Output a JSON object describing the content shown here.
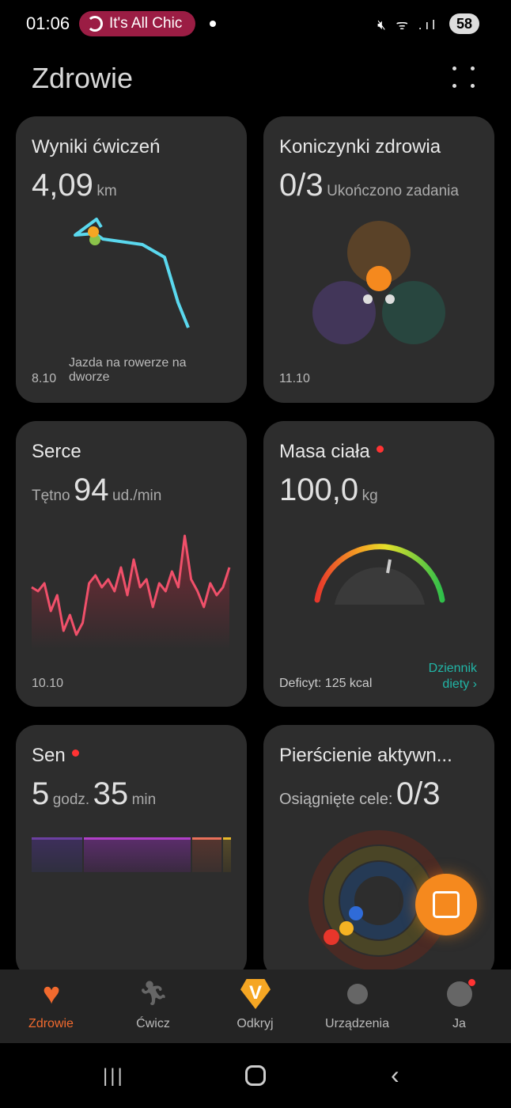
{
  "status": {
    "time": "01:06",
    "media": "It's All Chic",
    "battery": "58"
  },
  "header": {
    "title": "Zdrowie"
  },
  "cards": {
    "exercise": {
      "title": "Wyniki ćwiczeń",
      "value": "4,09",
      "unit": "km",
      "date": "8.10",
      "activity": "Jazda na rowerze na dworze"
    },
    "clover": {
      "title": "Koniczynki zdrowia",
      "value": "0/3",
      "unit": "Ukończono zadania",
      "date": "11.10"
    },
    "heart": {
      "title": "Serce",
      "label": "Tętno",
      "value": "94",
      "unit": "ud./min",
      "date": "10.10"
    },
    "weight": {
      "title": "Masa ciała",
      "value": "100,0",
      "unit": "kg",
      "deficit": "Deficyt: 125 kcal",
      "link": "Dziennik diety"
    },
    "sleep": {
      "title": "Sen",
      "hours": "5",
      "hours_unit": "godz.",
      "minutes": "35",
      "minutes_unit": "min"
    },
    "rings": {
      "title": "Pierścienie aktywn...",
      "label": "Osiągnięte cele:",
      "value": "0/3"
    }
  },
  "nav": [
    {
      "label": "Zdrowie",
      "icon": "heart-pulse-icon",
      "active": true
    },
    {
      "label": "Ćwicz",
      "icon": "running-icon"
    },
    {
      "label": "Odkryj",
      "icon": "discover-v-icon"
    },
    {
      "label": "Urządzenia",
      "icon": "watch-icon"
    },
    {
      "label": "Ja",
      "icon": "profile-icon"
    }
  ],
  "colors": {
    "accent": "#f26a2e",
    "link": "#21b5a6",
    "route": "#5ad8ee",
    "heart": "#f0506a"
  }
}
